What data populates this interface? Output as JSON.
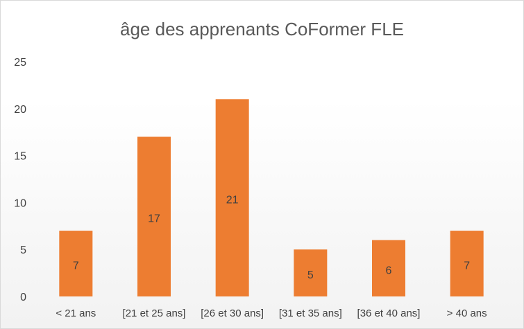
{
  "chart_data": {
    "type": "bar",
    "title": "âge des apprenants CoFormer FLE",
    "categories": [
      "< 21 ans",
      "[21 et 25 ans]",
      "[26 et 30 ans]",
      "[31 et 35 ans]",
      "[36 et 40 ans]",
      "> 40 ans"
    ],
    "values": [
      7,
      17,
      21,
      5,
      6,
      7
    ],
    "yticks": [
      "0",
      "5",
      "10",
      "15",
      "20",
      "25"
    ],
    "ylim": [
      0,
      25
    ],
    "xlabel": "",
    "ylabel": "",
    "grid": false,
    "legend": "none",
    "bar_color": "#ed7d31"
  }
}
